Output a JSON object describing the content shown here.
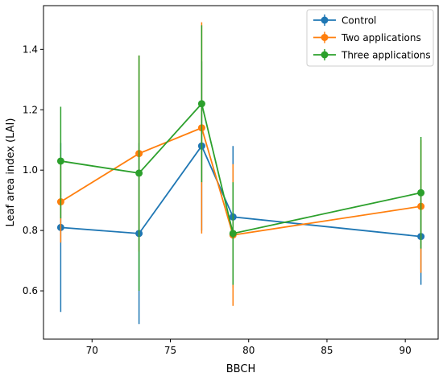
{
  "chart_data": {
    "type": "line",
    "title": "",
    "xlabel": "BBCH",
    "ylabel": "Leaf area index (LAI)",
    "xlim": [
      66.9,
      92.1
    ],
    "ylim": [
      0.44,
      1.545
    ],
    "xticks": [
      70,
      75,
      80,
      85,
      90
    ],
    "yticks": [
      0.6,
      0.8,
      1.0,
      1.2,
      1.4
    ],
    "xtick_labels": [
      "70",
      "75",
      "80",
      "85",
      "90"
    ],
    "ytick_labels": [
      "0.6",
      "0.8",
      "1.0",
      "1.2",
      "1.4"
    ],
    "legend_position": "top-right",
    "grid": false,
    "error_bars": true,
    "series": [
      {
        "name": "Control",
        "color": "#1f77b4",
        "x": [
          68,
          73,
          77,
          79,
          91
        ],
        "y": [
          0.81,
          0.79,
          1.08,
          0.845,
          0.78
        ],
        "err_low": [
          0.53,
          0.49,
          0.8,
          0.61,
          0.62
        ],
        "err_high": [
          1.09,
          1.09,
          1.36,
          1.08,
          0.94
        ]
      },
      {
        "name": "Two applications",
        "color": "#ff7f0e",
        "x": [
          68,
          73,
          77,
          79,
          91
        ],
        "y": [
          0.895,
          1.055,
          1.14,
          0.785,
          0.88
        ],
        "err_low": [
          0.76,
          0.73,
          0.79,
          0.55,
          0.66
        ],
        "err_high": [
          1.03,
          1.38,
          1.49,
          1.02,
          1.1
        ]
      },
      {
        "name": "Three applications",
        "color": "#2ca02c",
        "x": [
          68,
          73,
          77,
          79,
          91
        ],
        "y": [
          1.03,
          0.99,
          1.22,
          0.79,
          0.925
        ],
        "err_low": [
          0.84,
          0.6,
          0.96,
          0.62,
          0.74
        ],
        "err_high": [
          1.21,
          1.38,
          1.48,
          0.96,
          1.11
        ]
      }
    ]
  }
}
